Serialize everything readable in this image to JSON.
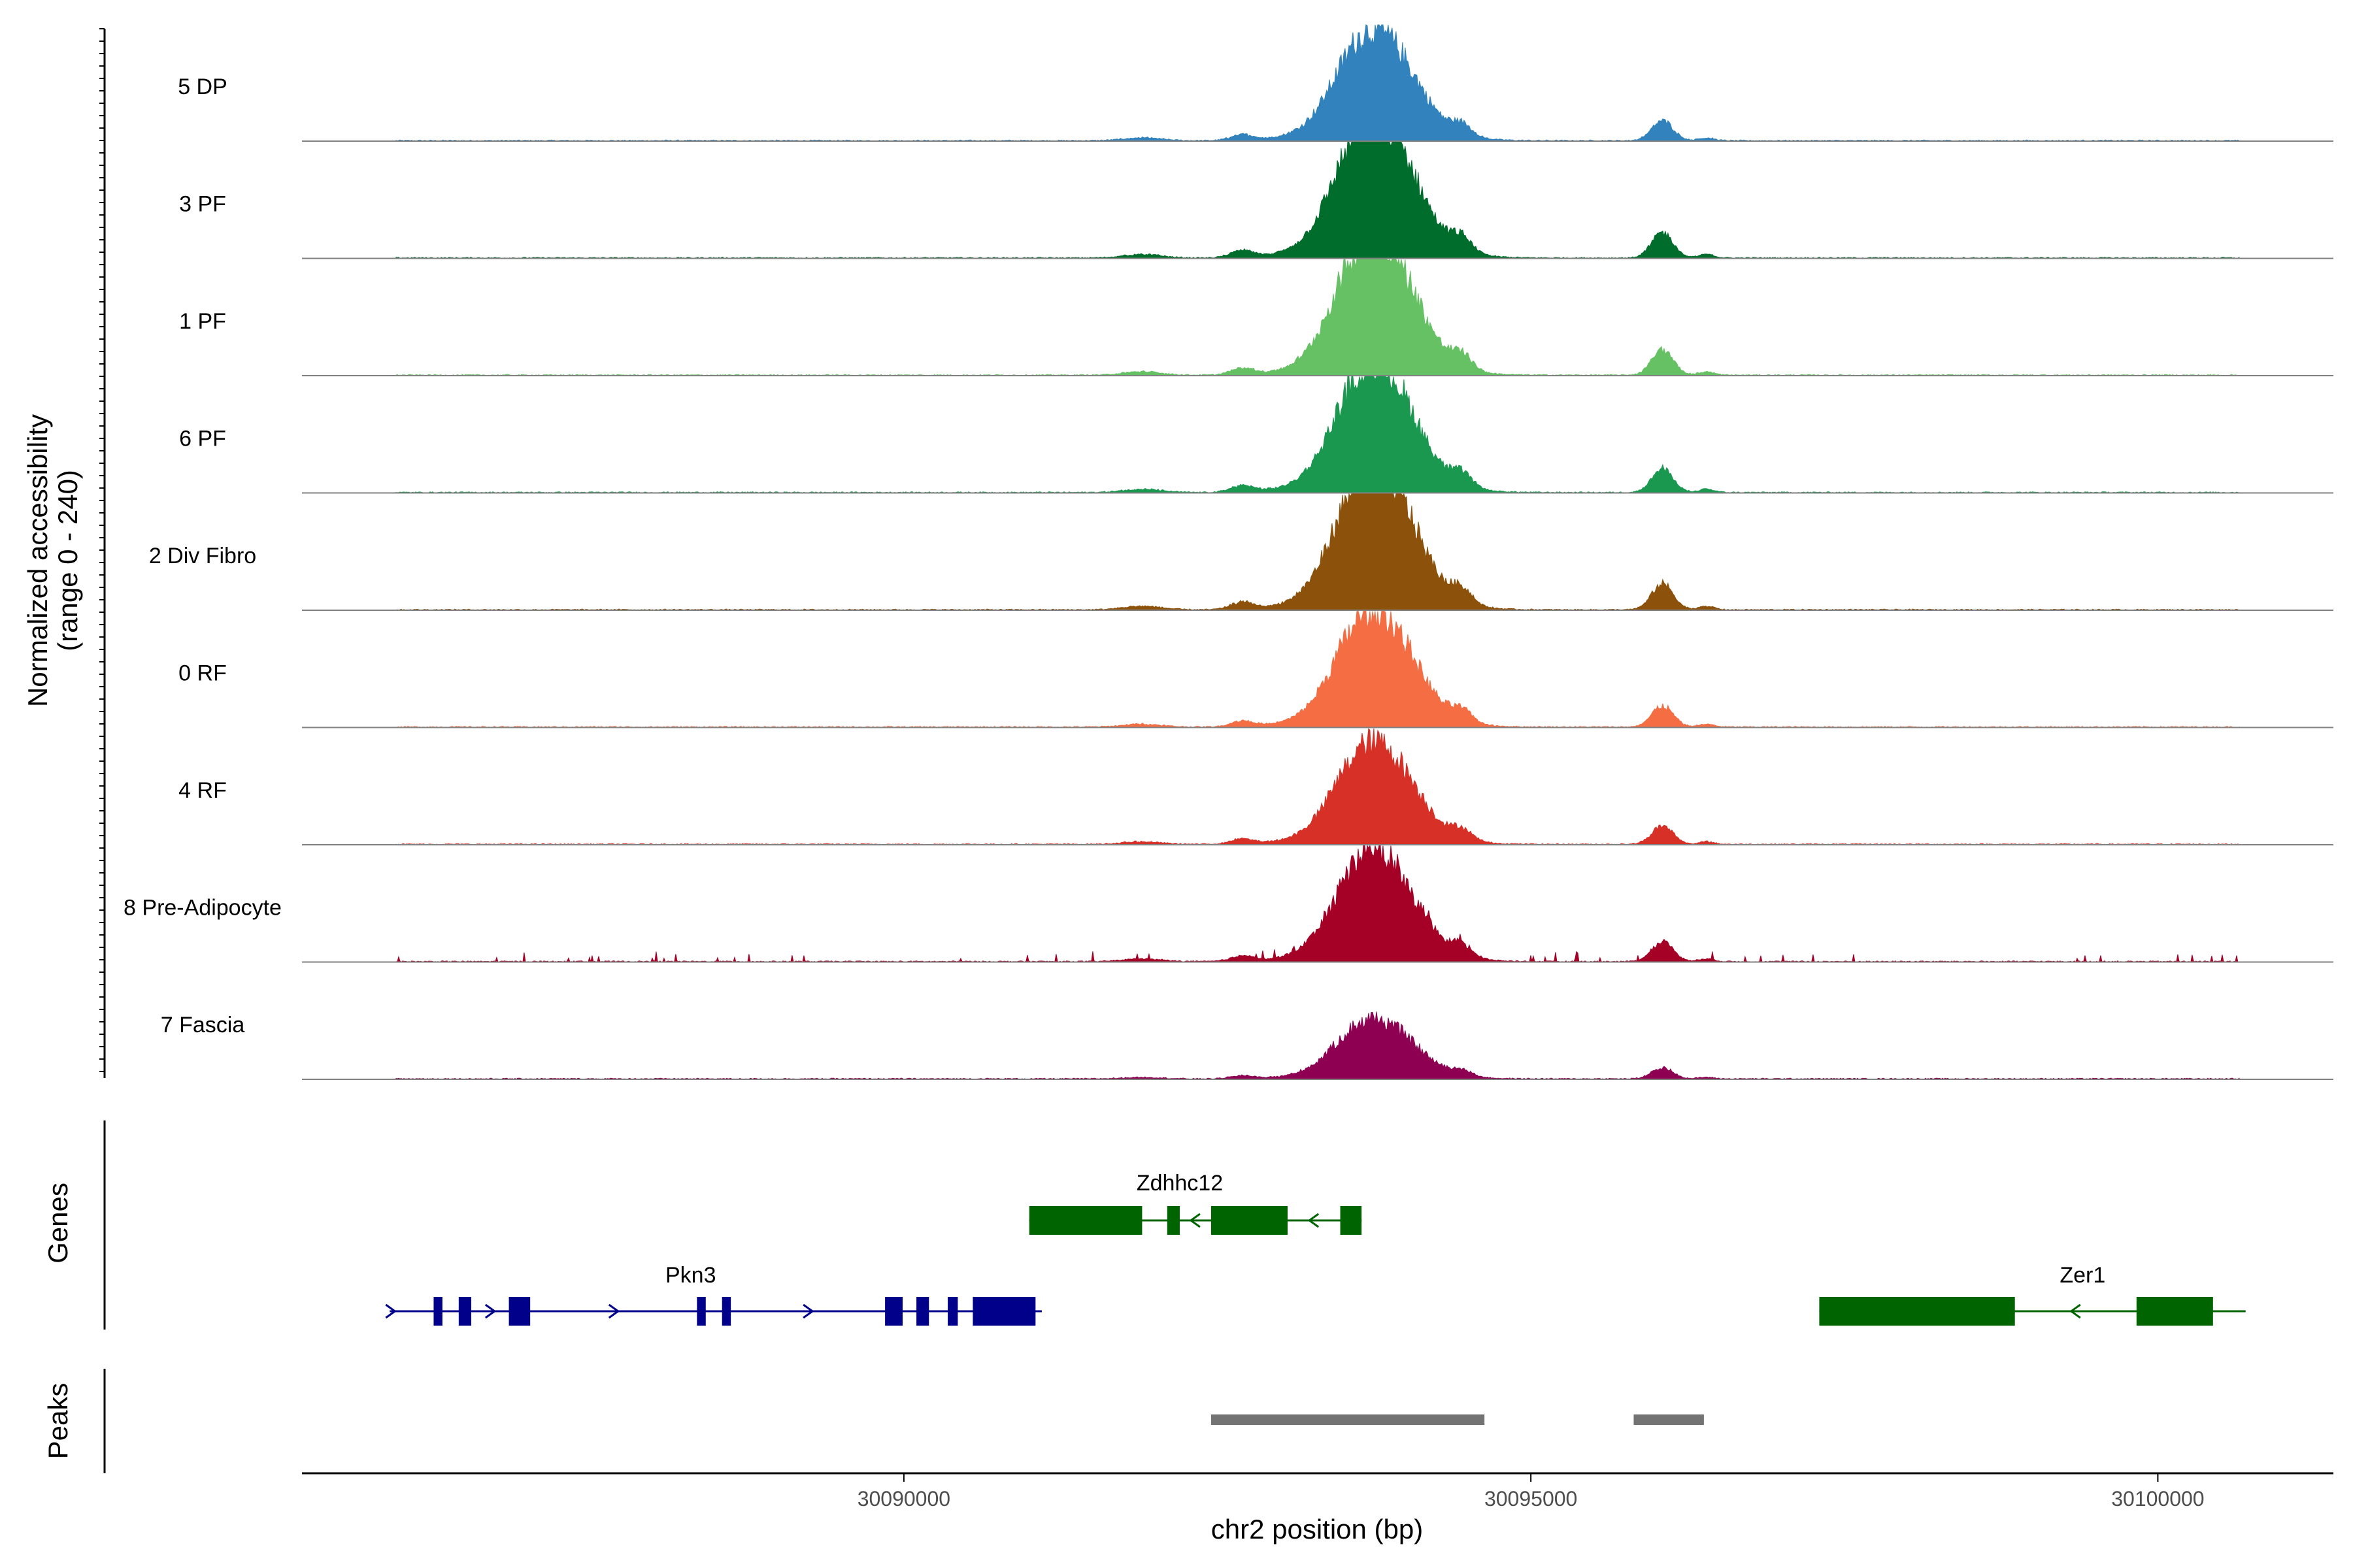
{
  "chart_data": {
    "type": "area",
    "title": "",
    "ylabel_line1": "Normalized accessibility",
    "ylabel_line2": "(range 0 - 240)",
    "xlabel": "chr2 position (bp)",
    "xlim": [
      30085200,
      30101400
    ],
    "x_ticks": [
      30090000,
      30095000,
      30100000
    ],
    "x_tick_labels": [
      "30090000",
      "30095000",
      "30100000"
    ],
    "ylim": [
      0,
      240
    ],
    "track_labels": {
      "genes": "Genes",
      "peaks": "Peaks"
    },
    "tracks": [
      {
        "name": "5 DP",
        "color": "#3182bd",
        "scale": 0.78
      },
      {
        "name": "3 PF",
        "color": "#006d2c",
        "scale": 1.0
      },
      {
        "name": "1 PF",
        "color": "#66c164",
        "scale": 1.0
      },
      {
        "name": "6 PF",
        "color": "#1a9850",
        "scale": 0.92
      },
      {
        "name": "2 Div Fibro",
        "color": "#8c510a",
        "scale": 1.02
      },
      {
        "name": "0 RF",
        "color": "#f46d43",
        "scale": 0.82
      },
      {
        "name": "4 RF",
        "color": "#d73027",
        "scale": 0.72
      },
      {
        "name": "8 Pre-Adipocyte",
        "color": "#a50026",
        "scale": 0.78,
        "noisy": true
      },
      {
        "name": "7 Fascia",
        "color": "#8e0152",
        "scale": 0.42
      }
    ],
    "genes": [
      {
        "name": "Zdhhc12",
        "strand": "-",
        "color": "#006400",
        "start": 30091000,
        "end": 30093650,
        "exons": [
          [
            30091000,
            30091900
          ],
          [
            30092100,
            30092200
          ],
          [
            30092450,
            30093060
          ],
          [
            30093480,
            30093650
          ]
        ]
      },
      {
        "name": "Pkn3",
        "strand": "+",
        "color": "#00008b",
        "start": 30085900,
        "end": 30091100,
        "exons": [
          [
            30086250,
            30086320
          ],
          [
            30086450,
            30086550
          ],
          [
            30086850,
            30087020
          ],
          [
            30088350,
            30088420
          ],
          [
            30088550,
            30088620
          ],
          [
            30089850,
            30089990
          ],
          [
            30090100,
            30090200
          ],
          [
            30090350,
            30090430
          ],
          [
            30090550,
            30091050
          ]
        ]
      },
      {
        "name": "Zer1",
        "strand": "-",
        "color": "#006400",
        "start": 30097300,
        "end": 30100700,
        "exons": [
          [
            30097300,
            30098860
          ],
          [
            30099830,
            30100440
          ]
        ]
      }
    ],
    "peaks": [
      [
        30092450,
        30094630
      ],
      [
        30095820,
        30096380
      ]
    ]
  }
}
